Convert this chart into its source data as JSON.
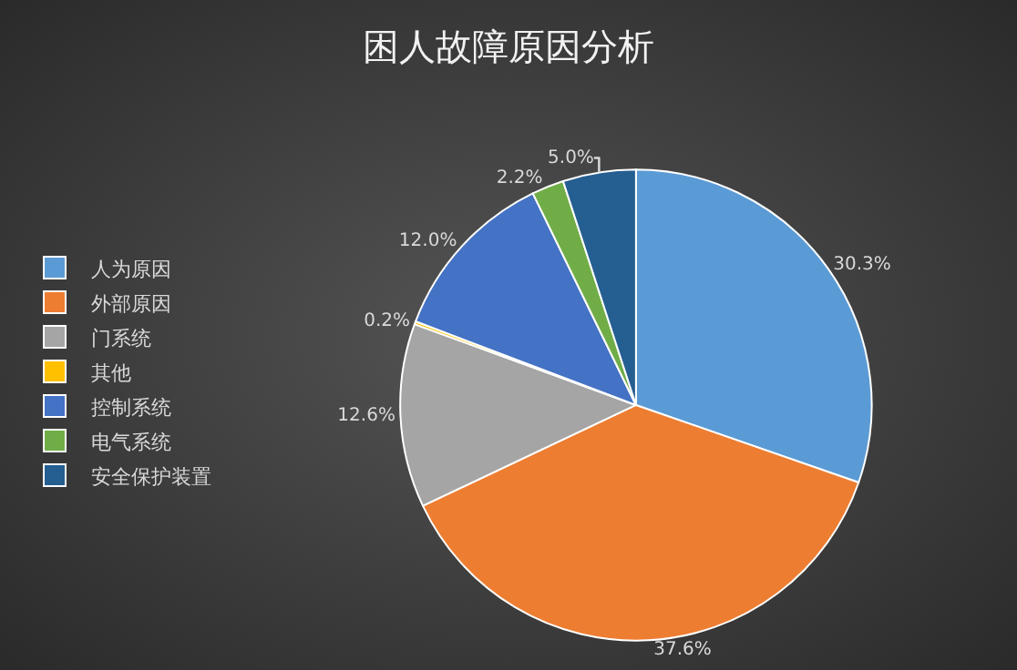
{
  "chart_data": {
    "type": "pie",
    "title": "困人故障原因分析",
    "categories": [
      "人为原因",
      "外部原因",
      "门系统",
      "其他",
      "控制系统",
      "电气系统",
      "安全保护装置"
    ],
    "values": [
      30.3,
      37.6,
      12.6,
      0.2,
      12.0,
      2.2,
      5.0
    ],
    "value_labels": [
      "30.3%",
      "37.6%",
      "12.6%",
      "0.2%",
      "12.0%",
      "2.2%",
      "5.0%"
    ],
    "colors": [
      "#5b9bd5",
      "#ed7d31",
      "#a5a5a5",
      "#ffc000",
      "#4472c4",
      "#70ad47",
      "#255e91"
    ],
    "legend": "left"
  }
}
